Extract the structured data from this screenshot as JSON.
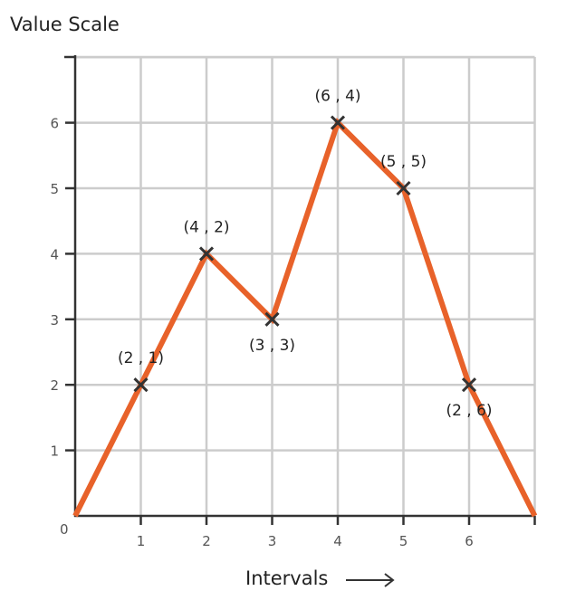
{
  "chart_data": {
    "type": "line",
    "title": "Value Scale",
    "xlabel": "Intervals",
    "ylabel": "",
    "xlim": [
      0,
      7
    ],
    "ylim": [
      0,
      7
    ],
    "x_ticks": [
      "1",
      "2",
      "3",
      "4",
      "5",
      "6"
    ],
    "y_ticks": [
      "1",
      "2",
      "3",
      "4",
      "5",
      "6"
    ],
    "origin_label": "0",
    "grid": true,
    "line_color": "#e8622a",
    "marker": "x",
    "series": [
      {
        "x": [
          0,
          1,
          2,
          3,
          4,
          5,
          6,
          7
        ],
        "y": [
          0,
          2,
          4,
          3,
          6,
          5,
          2,
          0
        ]
      }
    ],
    "point_labels": [
      {
        "x": 1,
        "y": 2,
        "text": "(2 , 1)",
        "pos": "above"
      },
      {
        "x": 2,
        "y": 4,
        "text": "(4 , 2)",
        "pos": "above"
      },
      {
        "x": 3,
        "y": 3,
        "text": "(3 , 3)",
        "pos": "below"
      },
      {
        "x": 4,
        "y": 6,
        "text": "(6 , 4)",
        "pos": "above"
      },
      {
        "x": 5,
        "y": 5,
        "text": "(5 , 5)",
        "pos": "above"
      },
      {
        "x": 6,
        "y": 2,
        "text": "(2 , 6)",
        "pos": "below"
      }
    ]
  }
}
